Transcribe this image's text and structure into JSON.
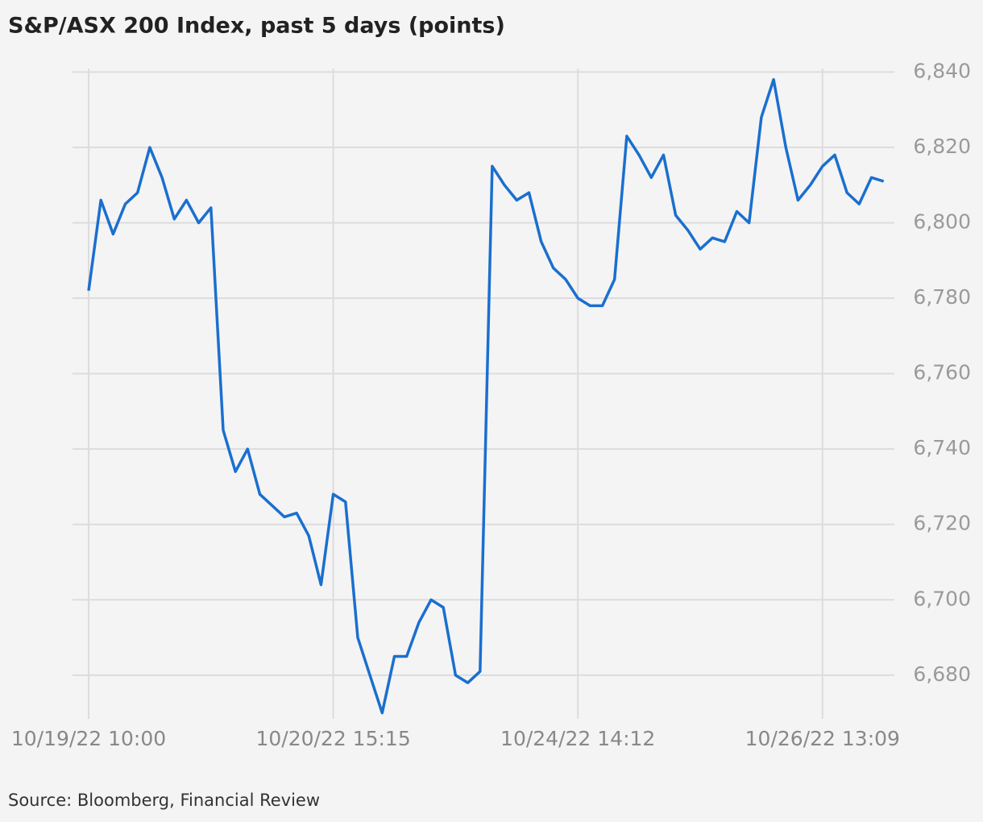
{
  "chart_data": {
    "type": "line",
    "title": "S&P/ASX 200 Index, past 5 days (points)",
    "source": "Source: Bloomberg, Financial Review",
    "categories": [
      "10/19/22 10:00",
      null,
      null,
      null,
      null,
      null,
      null,
      null,
      null,
      null,
      null,
      null,
      null,
      null,
      null,
      null,
      null,
      null,
      null,
      null,
      "10/20/22 15:15",
      null,
      null,
      null,
      null,
      null,
      null,
      null,
      null,
      null,
      null,
      null,
      null,
      null,
      null,
      null,
      null,
      null,
      null,
      null,
      "10/24/22 14:12",
      null,
      null,
      null,
      null,
      null,
      null,
      null,
      null,
      null,
      null,
      null,
      null,
      null,
      null,
      null,
      null,
      null,
      null,
      null,
      "10/26/22 13:09",
      null,
      null,
      null,
      null,
      null
    ],
    "series": [
      {
        "name": "S&P/ASX 200",
        "color": "#1a6fcf",
        "values": [
          6782,
          6806,
          6797,
          6805,
          6808,
          6820,
          6812,
          6801,
          6806,
          6800,
          6804,
          6745,
          6734,
          6740,
          6728,
          6725,
          6722,
          6723,
          6717,
          6704,
          6728,
          6726,
          6690,
          6680,
          6670,
          6685,
          6685,
          6694,
          6700,
          6698,
          6680,
          6678,
          6681,
          6815,
          6810,
          6806,
          6808,
          6795,
          6788,
          6785,
          6780,
          6778,
          6778,
          6785,
          6823,
          6818,
          6812,
          6818,
          6802,
          6798,
          6793,
          6796,
          6795,
          6803,
          6800,
          6828,
          6838,
          6820,
          6806,
          6810,
          6815,
          6818,
          6808,
          6805,
          6812,
          6811
        ]
      }
    ],
    "ylim": [
      6668,
      6842
    ],
    "yticks": [
      {
        "value": 6680,
        "label": "6,680"
      },
      {
        "value": 6700,
        "label": "6,700"
      },
      {
        "value": 6720,
        "label": "6,720"
      },
      {
        "value": 6740,
        "label": "6,740"
      },
      {
        "value": 6760,
        "label": "6,760"
      },
      {
        "value": 6780,
        "label": "6,780"
      },
      {
        "value": 6800,
        "label": "6,800"
      },
      {
        "value": 6820,
        "label": "6,820"
      },
      {
        "value": 6840,
        "label": "6,840"
      }
    ],
    "grid": true
  }
}
